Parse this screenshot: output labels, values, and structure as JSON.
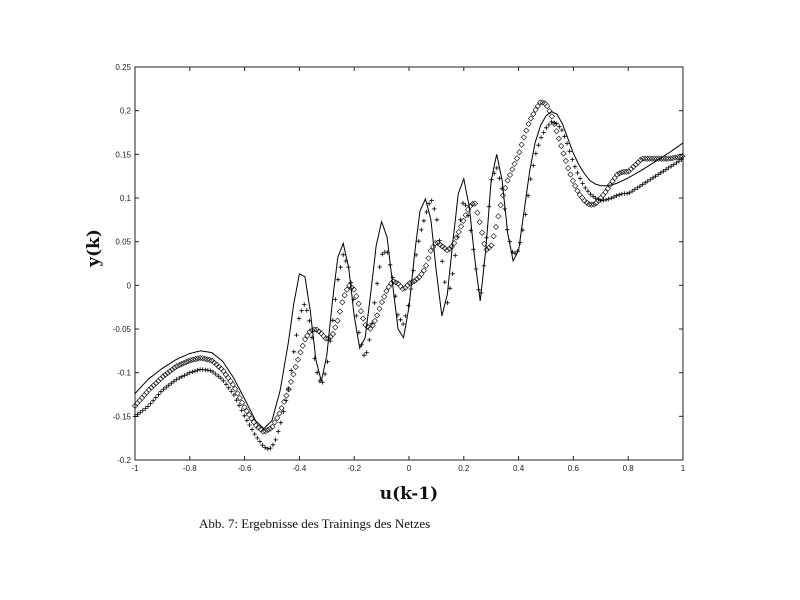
{
  "caption": "Abb. 7: Ergebnisse des Trainings des Netzes",
  "chart_data": {
    "type": "line",
    "title": "",
    "xlabel": "u(k-1)",
    "ylabel": "y(k)",
    "xlim": [
      -1,
      1
    ],
    "ylim": [
      -0.2,
      0.25
    ],
    "grid": false,
    "x_ticks": [
      -1,
      -0.8,
      -0.6,
      -0.4,
      -0.2,
      0,
      0.2,
      0.4,
      0.6,
      0.8,
      1
    ],
    "x_tick_labels": [
      "-1",
      "-0.8",
      "-0.6",
      "-0.4",
      "-0.2",
      "0",
      "0.2",
      "0.4",
      "0.6",
      "0.8",
      "1"
    ],
    "y_ticks": [
      -0.2,
      -0.15,
      -0.1,
      -0.05,
      0,
      0.05,
      0.1,
      0.15,
      0.2,
      0.25
    ],
    "y_tick_labels": [
      "-0.2",
      "-0.15",
      "-0.1",
      "-0.05",
      "0",
      "0.05",
      "0.1",
      "0.15",
      "0.2",
      "0.25"
    ],
    "series": [
      {
        "marker": "line",
        "color": "#000000",
        "x": [
          -1,
          -0.95,
          -0.9,
          -0.85,
          -0.8,
          -0.76,
          -0.72,
          -0.68,
          -0.64,
          -0.6,
          -0.56,
          -0.53,
          -0.5,
          -0.47,
          -0.44,
          -0.42,
          -0.4,
          -0.38,
          -0.36,
          -0.34,
          -0.32,
          -0.3,
          -0.28,
          -0.26,
          -0.24,
          -0.22,
          -0.2,
          -0.18,
          -0.16,
          -0.14,
          -0.12,
          -0.1,
          -0.08,
          -0.06,
          -0.04,
          -0.02,
          0,
          0.02,
          0.04,
          0.06,
          0.08,
          0.1,
          0.12,
          0.14,
          0.16,
          0.18,
          0.2,
          0.22,
          0.24,
          0.26,
          0.28,
          0.3,
          0.32,
          0.34,
          0.36,
          0.38,
          0.4,
          0.42,
          0.44,
          0.46,
          0.48,
          0.5,
          0.52,
          0.54,
          0.56,
          0.58,
          0.6,
          0.62,
          0.64,
          0.66,
          0.68,
          0.7,
          0.72,
          0.74,
          0.76,
          0.78,
          0.8,
          0.85,
          0.9,
          0.95,
          1
        ],
        "y": [
          -0.124,
          -0.107,
          -0.095,
          -0.085,
          -0.078,
          -0.075,
          -0.077,
          -0.087,
          -0.106,
          -0.13,
          -0.155,
          -0.164,
          -0.155,
          -0.12,
          -0.065,
          -0.02,
          0.013,
          0.01,
          -0.03,
          -0.085,
          -0.11,
          -0.08,
          -0.02,
          0.032,
          0.048,
          0.02,
          -0.035,
          -0.072,
          -0.06,
          -0.01,
          0.045,
          0.073,
          0.055,
          0.002,
          -0.05,
          -0.06,
          -0.025,
          0.035,
          0.085,
          0.099,
          0.075,
          0.015,
          -0.035,
          -0.01,
          0.05,
          0.105,
          0.122,
          0.09,
          0.03,
          -0.018,
          0.04,
          0.12,
          0.15,
          0.12,
          0.06,
          0.028,
          0.04,
          0.085,
          0.13,
          0.163,
          0.183,
          0.194,
          0.199,
          0.196,
          0.185,
          0.168,
          0.151,
          0.138,
          0.128,
          0.12,
          0.116,
          0.114,
          0.114,
          0.115,
          0.117,
          0.12,
          0.123,
          0.132,
          0.142,
          0.152,
          0.163
        ]
      },
      {
        "marker": "plus",
        "color": "#000000",
        "x": [
          -1,
          -0.95,
          -0.9,
          -0.85,
          -0.8,
          -0.76,
          -0.72,
          -0.68,
          -0.64,
          -0.6,
          -0.56,
          -0.53,
          -0.51,
          -0.49,
          -0.47,
          -0.44,
          -0.42,
          -0.4,
          -0.38,
          -0.36,
          -0.34,
          -0.32,
          -0.3,
          -0.28,
          -0.26,
          -0.24,
          -0.22,
          -0.2,
          -0.18,
          -0.16,
          -0.14,
          -0.12,
          -0.1,
          -0.08,
          -0.06,
          -0.04,
          -0.02,
          0,
          0.02,
          0.04,
          0.06,
          0.08,
          0.1,
          0.12,
          0.14,
          0.16,
          0.18,
          0.2,
          0.22,
          0.24,
          0.26,
          0.28,
          0.3,
          0.32,
          0.34,
          0.36,
          0.38,
          0.4,
          0.42,
          0.44,
          0.46,
          0.48,
          0.5,
          0.52,
          0.54,
          0.56,
          0.58,
          0.6,
          0.62,
          0.64,
          0.66,
          0.68,
          0.7,
          0.72,
          0.74,
          0.76,
          0.78,
          0.8,
          0.85,
          0.9,
          0.95,
          1
        ],
        "y": [
          -0.15,
          -0.138,
          -0.12,
          -0.108,
          -0.1,
          -0.096,
          -0.098,
          -0.108,
          -0.125,
          -0.15,
          -0.172,
          -0.185,
          -0.188,
          -0.18,
          -0.16,
          -0.12,
          -0.075,
          -0.035,
          -0.02,
          -0.045,
          -0.095,
          -0.115,
          -0.095,
          -0.045,
          0.005,
          0.035,
          0.02,
          -0.02,
          -0.06,
          -0.085,
          -0.055,
          -0.005,
          0.035,
          0.04,
          0.01,
          -0.035,
          -0.045,
          -0.02,
          0.025,
          0.058,
          0.08,
          0.1,
          0.08,
          0.03,
          -0.02,
          0.015,
          0.06,
          0.1,
          0.075,
          0.03,
          -0.02,
          0.045,
          0.12,
          0.135,
          0.11,
          0.06,
          0.035,
          0.04,
          0.07,
          0.115,
          0.148,
          0.168,
          0.18,
          0.187,
          0.185,
          0.177,
          0.16,
          0.14,
          0.125,
          0.113,
          0.105,
          0.1,
          0.097,
          0.098,
          0.1,
          0.103,
          0.105,
          0.105,
          0.115,
          0.125,
          0.135,
          0.145
        ]
      },
      {
        "marker": "diamond",
        "color": "#000000",
        "x": [
          -1,
          -0.95,
          -0.9,
          -0.85,
          -0.8,
          -0.76,
          -0.72,
          -0.68,
          -0.64,
          -0.6,
          -0.56,
          -0.53,
          -0.5,
          -0.47,
          -0.44,
          -0.42,
          -0.4,
          -0.38,
          -0.36,
          -0.34,
          -0.32,
          -0.3,
          -0.28,
          -0.26,
          -0.24,
          -0.22,
          -0.2,
          -0.18,
          -0.16,
          -0.14,
          -0.12,
          -0.1,
          -0.08,
          -0.06,
          -0.04,
          -0.02,
          0,
          0.02,
          0.04,
          0.06,
          0.08,
          0.1,
          0.12,
          0.14,
          0.16,
          0.18,
          0.2,
          0.22,
          0.24,
          0.26,
          0.28,
          0.3,
          0.32,
          0.34,
          0.36,
          0.38,
          0.4,
          0.42,
          0.44,
          0.46,
          0.48,
          0.5,
          0.52,
          0.54,
          0.56,
          0.58,
          0.6,
          0.62,
          0.64,
          0.66,
          0.68,
          0.7,
          0.72,
          0.74,
          0.76,
          0.78,
          0.8,
          0.85,
          0.9,
          0.95,
          1
        ],
        "y": [
          -0.138,
          -0.12,
          -0.105,
          -0.093,
          -0.086,
          -0.083,
          -0.086,
          -0.097,
          -0.115,
          -0.14,
          -0.16,
          -0.168,
          -0.163,
          -0.145,
          -0.12,
          -0.1,
          -0.08,
          -0.062,
          -0.052,
          -0.05,
          -0.055,
          -0.062,
          -0.058,
          -0.04,
          -0.015,
          0,
          -0.005,
          -0.025,
          -0.045,
          -0.05,
          -0.038,
          -0.02,
          -0.005,
          0.005,
          0.002,
          -0.005,
          0.002,
          0.005,
          0.01,
          0.02,
          0.04,
          0.05,
          0.045,
          0.04,
          0.045,
          0.06,
          0.075,
          0.09,
          0.095,
          0.07,
          0.04,
          0.045,
          0.07,
          0.1,
          0.12,
          0.135,
          0.15,
          0.17,
          0.188,
          0.2,
          0.21,
          0.208,
          0.195,
          0.175,
          0.155,
          0.135,
          0.118,
          0.105,
          0.097,
          0.092,
          0.093,
          0.1,
          0.108,
          0.118,
          0.127,
          0.13,
          0.13,
          0.145,
          0.145,
          0.145,
          0.148
        ]
      }
    ]
  }
}
